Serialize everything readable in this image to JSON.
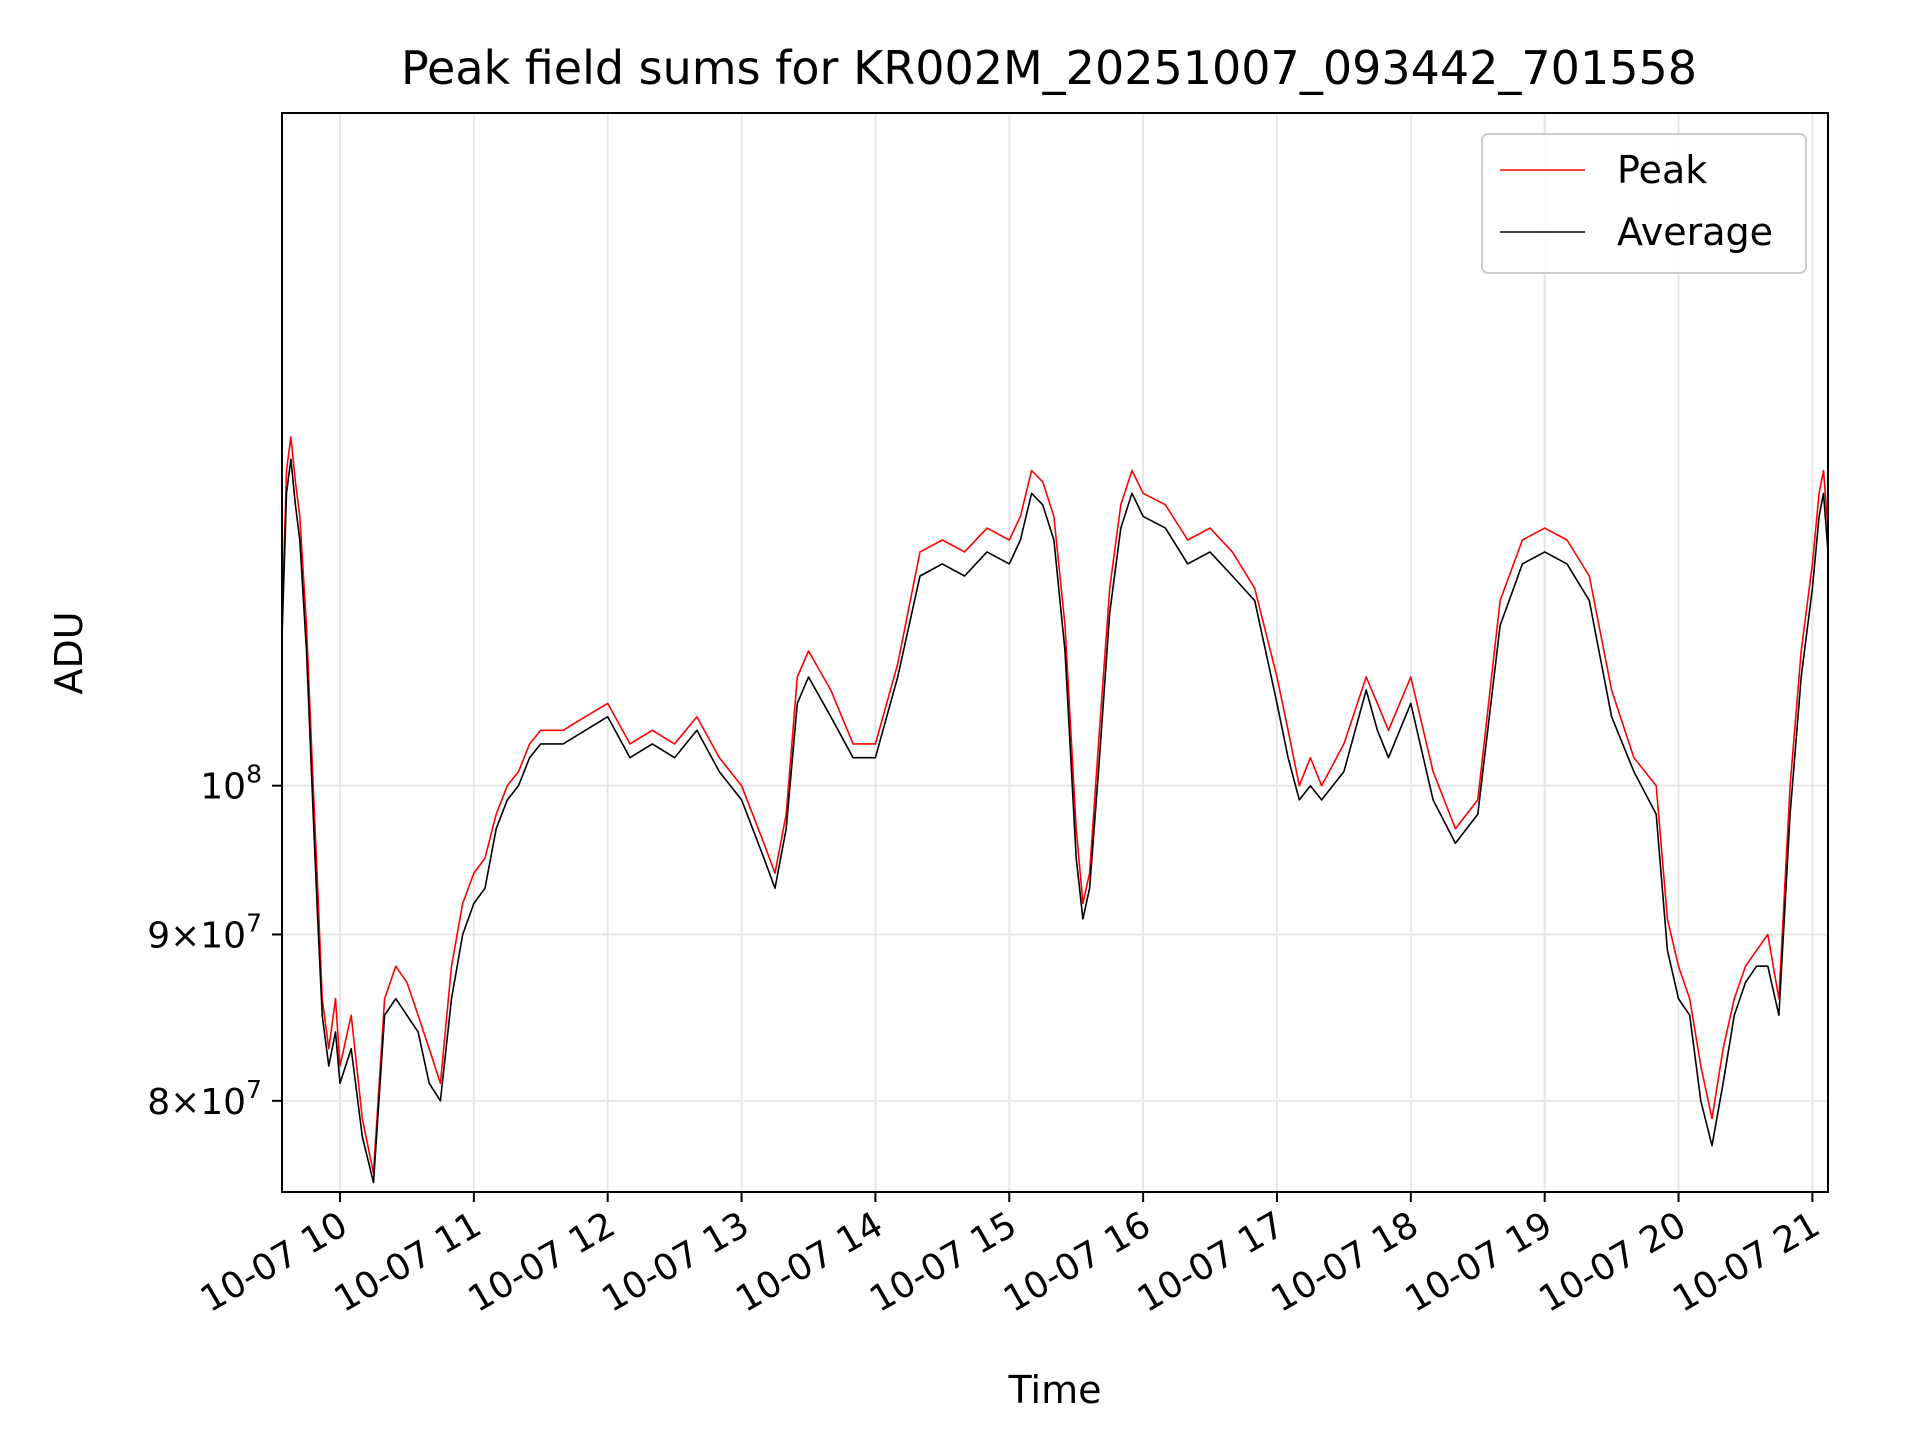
{
  "chart_data": {
    "type": "line",
    "title": "Peak field sums for KR002M_20251007_093442_701558",
    "xlabel": "Time",
    "ylabel": "ADU",
    "y_scale": "log",
    "grid": true,
    "legend_position": "top-right",
    "x_range": [
      "2025-10-07 09:34",
      "2025-10-07 21:07"
    ],
    "x_ticks": [
      "10-07 10",
      "10-07 11",
      "10-07 12",
      "10-07 13",
      "10-07 14",
      "10-07 15",
      "10-07 16",
      "10-07 17",
      "10-07 18",
      "10-07 19",
      "10-07 20",
      "10-07 21"
    ],
    "y_ticks": [
      {
        "value": 80000000,
        "mantissa": "8",
        "base": "10",
        "exp": "7"
      },
      {
        "value": 90000000,
        "mantissa": "9",
        "base": "10",
        "exp": "7"
      },
      {
        "value": 100000000,
        "mantissa": "",
        "base": "10",
        "exp": "8"
      }
    ],
    "ylim": [
      75000000,
      161000000
    ],
    "series": [
      {
        "name": "Peak",
        "color": "#ff0000",
        "x": [
          "09:34",
          "09:36",
          "09:38",
          "09:40",
          "09:42",
          "09:45",
          "09:48",
          "09:50",
          "09:52",
          "09:55",
          "09:58",
          "10:00",
          "10:05",
          "10:10",
          "10:15",
          "10:20",
          "10:25",
          "10:30",
          "10:35",
          "10:40",
          "10:45",
          "10:50",
          "10:55",
          "11:00",
          "11:05",
          "11:10",
          "11:15",
          "11:20",
          "11:25",
          "11:30",
          "11:40",
          "11:50",
          "12:00",
          "12:10",
          "12:20",
          "12:30",
          "12:40",
          "12:50",
          "13:00",
          "13:10",
          "13:15",
          "13:20",
          "13:25",
          "13:30",
          "13:40",
          "13:50",
          "14:00",
          "14:10",
          "14:20",
          "14:30",
          "14:40",
          "14:50",
          "15:00",
          "15:05",
          "15:10",
          "15:15",
          "15:20",
          "15:25",
          "15:30",
          "15:33",
          "15:36",
          "15:40",
          "15:45",
          "15:50",
          "15:55",
          "16:00",
          "16:10",
          "16:20",
          "16:30",
          "16:40",
          "16:50",
          "17:00",
          "17:05",
          "17:10",
          "17:15",
          "17:20",
          "17:30",
          "17:40",
          "17:45",
          "17:50",
          "18:00",
          "18:10",
          "18:20",
          "18:30",
          "18:40",
          "18:50",
          "19:00",
          "19:10",
          "19:20",
          "19:30",
          "19:40",
          "19:50",
          "19:55",
          "20:00",
          "20:05",
          "20:10",
          "20:15",
          "20:20",
          "20:25",
          "20:30",
          "20:35",
          "20:40",
          "20:45",
          "20:50",
          "20:55",
          "21:00",
          "21:03",
          "21:05",
          "21:07"
        ],
        "y": [
          112000000,
          125000000,
          128000000,
          124000000,
          121000000,
          112000000,
          100000000,
          93000000,
          86000000,
          83000000,
          86000000,
          82000000,
          85000000,
          79000000,
          76000000,
          86000000,
          88000000,
          87000000,
          85000000,
          83000000,
          81000000,
          88000000,
          92000000,
          94000000,
          95000000,
          98000000,
          100000000,
          101000000,
          103000000,
          104000000,
          104000000,
          105000000,
          106000000,
          103000000,
          104000000,
          103000000,
          105000000,
          102000000,
          100000000,
          96000000,
          94000000,
          98000000,
          108000000,
          110000000,
          107000000,
          103000000,
          103000000,
          109000000,
          118000000,
          119000000,
          118000000,
          120000000,
          119000000,
          121000000,
          125000000,
          124000000,
          121000000,
          112000000,
          97000000,
          92000000,
          94000000,
          103000000,
          115000000,
          122000000,
          125000000,
          123000000,
          122000000,
          119000000,
          120000000,
          118000000,
          115000000,
          108000000,
          104000000,
          100000000,
          102000000,
          100000000,
          103000000,
          108000000,
          106000000,
          104000000,
          108000000,
          101000000,
          97000000,
          99000000,
          114000000,
          119000000,
          120000000,
          119000000,
          116000000,
          107000000,
          102000000,
          100000000,
          91000000,
          88000000,
          86000000,
          82000000,
          79000000,
          83000000,
          86000000,
          88000000,
          89000000,
          90000000,
          86000000,
          100000000,
          110000000,
          117000000,
          123000000,
          125000000,
          120000000
        ]
      },
      {
        "name": "Average",
        "color": "#000000",
        "x": [
          "09:34",
          "09:36",
          "09:38",
          "09:40",
          "09:42",
          "09:45",
          "09:48",
          "09:50",
          "09:52",
          "09:55",
          "09:58",
          "10:00",
          "10:05",
          "10:10",
          "10:15",
          "10:20",
          "10:25",
          "10:30",
          "10:35",
          "10:40",
          "10:45",
          "10:50",
          "10:55",
          "11:00",
          "11:05",
          "11:10",
          "11:15",
          "11:20",
          "11:25",
          "11:30",
          "11:40",
          "11:50",
          "12:00",
          "12:10",
          "12:20",
          "12:30",
          "12:40",
          "12:50",
          "13:00",
          "13:10",
          "13:15",
          "13:20",
          "13:25",
          "13:30",
          "13:40",
          "13:50",
          "14:00",
          "14:10",
          "14:20",
          "14:30",
          "14:40",
          "14:50",
          "15:00",
          "15:05",
          "15:10",
          "15:15",
          "15:20",
          "15:25",
          "15:30",
          "15:33",
          "15:36",
          "15:40",
          "15:45",
          "15:50",
          "15:55",
          "16:00",
          "16:10",
          "16:20",
          "16:30",
          "16:40",
          "16:50",
          "17:00",
          "17:05",
          "17:10",
          "17:15",
          "17:20",
          "17:30",
          "17:40",
          "17:45",
          "17:50",
          "18:00",
          "18:10",
          "18:20",
          "18:30",
          "18:40",
          "18:50",
          "19:00",
          "19:10",
          "19:20",
          "19:30",
          "19:40",
          "19:50",
          "19:55",
          "20:00",
          "20:05",
          "20:10",
          "20:15",
          "20:20",
          "20:25",
          "20:30",
          "20:35",
          "20:40",
          "20:45",
          "20:50",
          "20:55",
          "21:00",
          "21:03",
          "21:05",
          "21:07"
        ],
        "y": [
          111000000,
          123000000,
          126000000,
          122000000,
          119000000,
          110000000,
          98000000,
          91000000,
          85000000,
          82000000,
          84000000,
          81000000,
          83000000,
          78000000,
          75500000,
          85000000,
          86000000,
          85000000,
          84000000,
          81000000,
          80000000,
          86000000,
          90000000,
          92000000,
          93000000,
          97000000,
          99000000,
          100000000,
          102000000,
          103000000,
          103000000,
          104000000,
          105000000,
          102000000,
          103000000,
          102000000,
          104000000,
          101000000,
          99000000,
          95000000,
          93000000,
          97000000,
          106000000,
          108000000,
          105000000,
          102000000,
          102000000,
          108000000,
          116000000,
          117000000,
          116000000,
          118000000,
          117000000,
          119000000,
          123000000,
          122000000,
          119000000,
          110000000,
          95000000,
          91000000,
          93000000,
          101000000,
          113000000,
          120000000,
          123000000,
          121000000,
          120000000,
          117000000,
          118000000,
          116000000,
          114000000,
          106000000,
          102000000,
          99000000,
          100000000,
          99000000,
          101000000,
          107000000,
          104000000,
          102000000,
          106000000,
          99000000,
          96000000,
          98000000,
          112000000,
          117000000,
          118000000,
          117000000,
          114000000,
          105000000,
          101000000,
          98000000,
          89000000,
          86000000,
          85000000,
          80000000,
          77500000,
          81000000,
          85000000,
          87000000,
          88000000,
          88000000,
          85000000,
          98000000,
          108000000,
          115000000,
          121000000,
          123000000,
          118000000
        ]
      }
    ]
  }
}
